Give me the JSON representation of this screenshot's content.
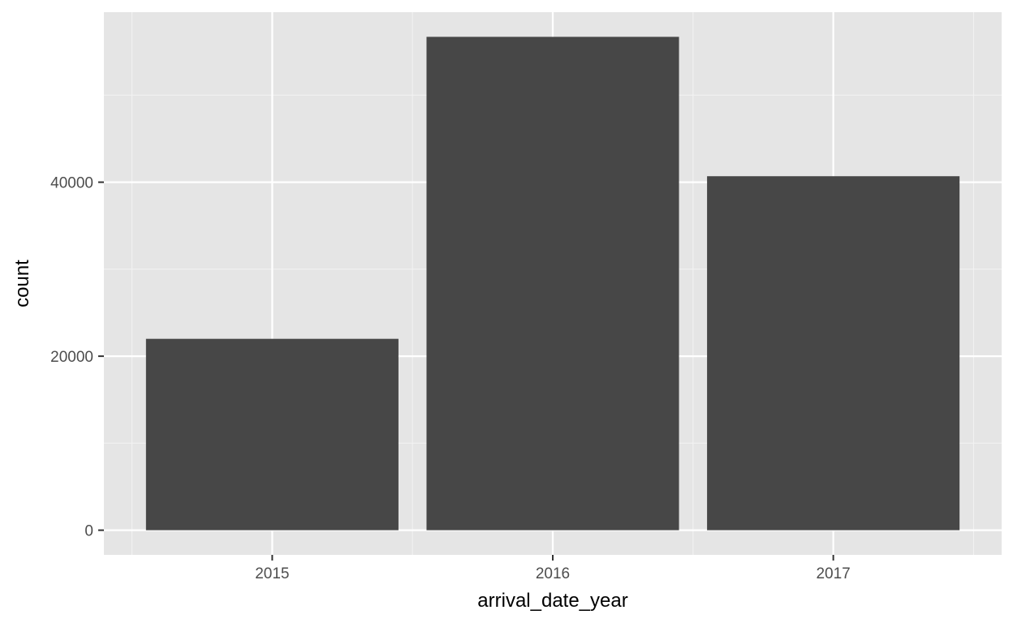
{
  "chart_data": {
    "type": "bar",
    "title": "",
    "xlabel": "arrival_date_year",
    "ylabel": "count",
    "categories": [
      "2015",
      "2016",
      "2017"
    ],
    "values": [
      21996,
      56707,
      40687
    ],
    "ylim": [
      -2835,
      59542
    ],
    "yticks": [
      0,
      20000,
      40000
    ],
    "yticks_minor": [
      10000,
      30000,
      50000
    ],
    "ytick_labels": [
      "0",
      "20000",
      "40000"
    ],
    "grid": true,
    "legend": "none",
    "colors": {
      "panel": "#e5e5e5",
      "grid_major": "#ffffff",
      "grid_minor": "#f2f2f2",
      "bar": "#474747",
      "tick": "#333333",
      "tick_label": "#4d4d4d",
      "axis_title": "#000000"
    }
  }
}
